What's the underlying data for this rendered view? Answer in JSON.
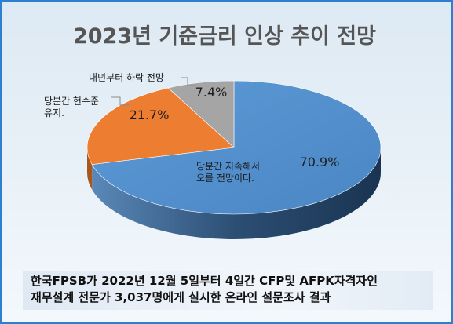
{
  "chart_data": {
    "type": "pie",
    "title": "2023년 기준금리 인상 추이 전망",
    "categories": [
      "당분간 지속해서 오를 전망이다.",
      "당분간 현수준 유지.",
      "내년부터 하락 전망"
    ],
    "category_lines": [
      [
        "당분간 지속해서",
        "오를 전망이다."
      ],
      [
        "당분간 현수준",
        "유지."
      ],
      [
        "내년부터 하락 전망"
      ]
    ],
    "values": [
      70.9,
      21.7,
      7.4
    ],
    "value_labels": [
      "70.9%",
      "21.7%",
      "7.4%"
    ],
    "colors": [
      "#5b9bd5",
      "#ed7d31",
      "#a5a5a5"
    ],
    "style": "3d-pie",
    "legend": "none"
  },
  "source_note": {
    "line1": "한국FPSB가 2022년 12월 5일부터 4일간 CFP및 AFPK자격자인",
    "line2": "재무설계 전문가 3,037명에게 실시한 온라인 설문조사 결과"
  }
}
